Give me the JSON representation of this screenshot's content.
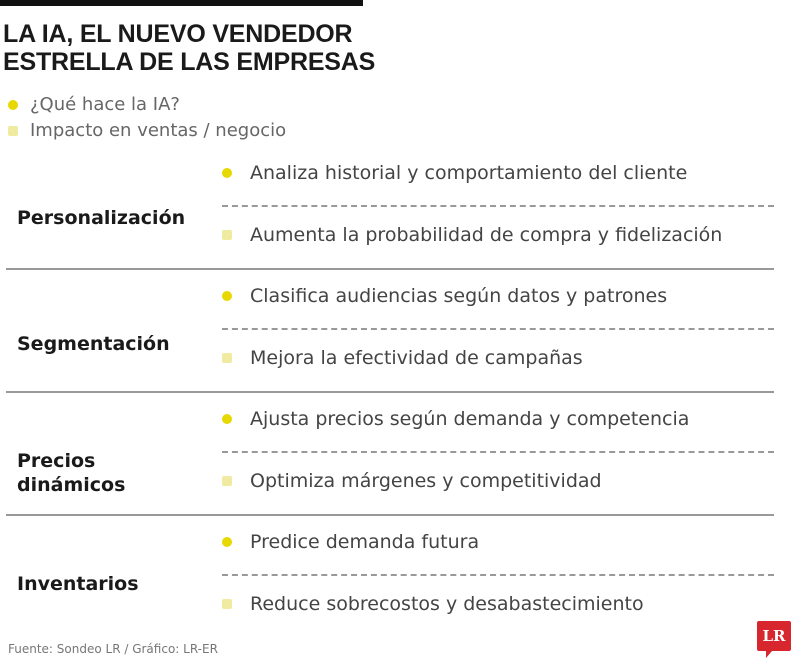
{
  "title_line1": "LA IA, EL NUEVO VENDEDOR",
  "title_line2": "ESTRELLA DE LAS EMPRESAS",
  "colors": {
    "what": "#e6d800",
    "impact": "#f0eba0",
    "logo": "#d7262e"
  },
  "legend": [
    {
      "label": "¿Qué hace la IA?",
      "icon": "circle"
    },
    {
      "label": "Impacto en ventas / negocio",
      "icon": "square"
    }
  ],
  "rows": [
    {
      "category": "Personalización",
      "what": "Analiza historial y comportamiento del cliente",
      "impact": "Aumenta la probabilidad de compra y fidelización"
    },
    {
      "category": "Segmentación",
      "what": "Clasifica audiencias según datos y patrones",
      "impact": "Mejora la efectividad de campañas"
    },
    {
      "category": "Precios dinámicos",
      "what": "Ajusta precios según demanda y competencia",
      "impact": "Optimiza márgenes y competitividad"
    },
    {
      "category": "Inventarios",
      "what": "Predice demanda futura",
      "impact": "Reduce sobrecostos y desabastecimiento"
    }
  ],
  "source": "Fuente: Sondeo LR / Gráfico: LR-ER",
  "logo": "LR"
}
